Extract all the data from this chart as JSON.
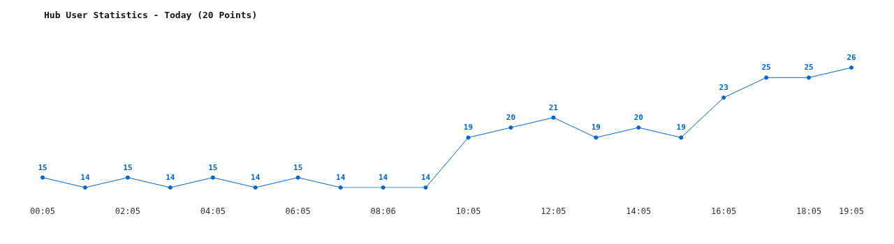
{
  "chart_data": {
    "type": "line",
    "title": "Hub User Statistics - Today (20 Points)",
    "categories": [
      "00:05",
      null,
      "02:05",
      null,
      "04:05",
      null,
      "06:05",
      null,
      "08:06",
      null,
      "10:05",
      null,
      "12:05",
      null,
      "14:05",
      null,
      "16:05",
      null,
      "18:05",
      "19:05"
    ],
    "values": [
      15,
      14,
      15,
      14,
      15,
      14,
      15,
      14,
      14,
      14,
      19,
      20,
      21,
      19,
      20,
      19,
      23,
      25,
      25,
      26
    ],
    "color": "#0066cc",
    "data_labels": true,
    "marker": "circle"
  }
}
